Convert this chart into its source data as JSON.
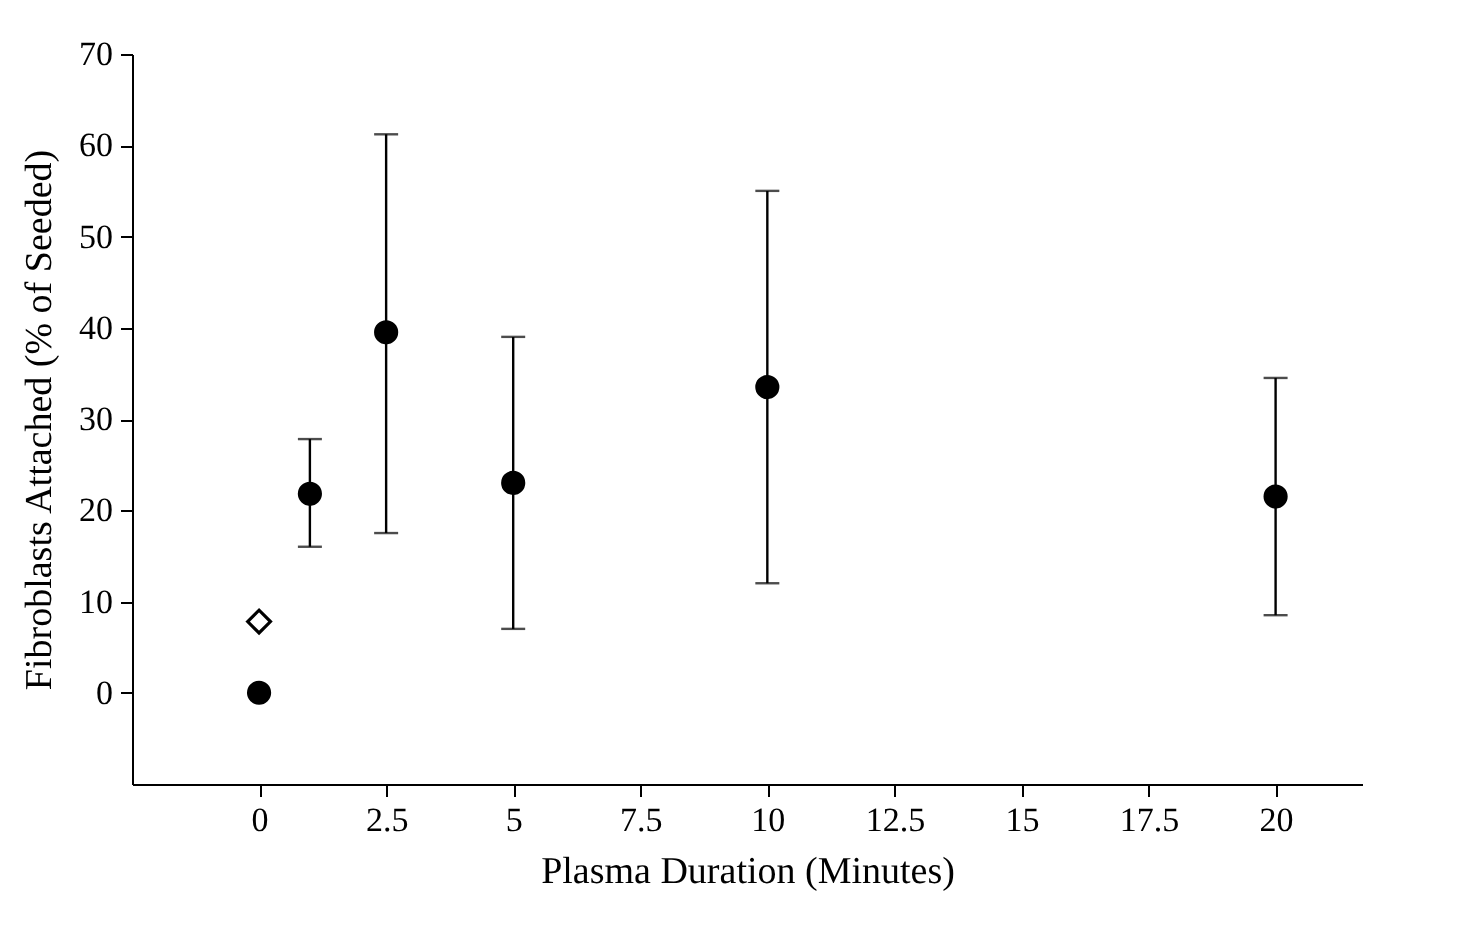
{
  "chart_data": {
    "type": "scatter",
    "xlabel": "Plasma Duration (Minutes)",
    "ylabel": "Fibroblasts Attached (% of Seeded)",
    "xlim": [
      -2.5,
      21.7
    ],
    "ylim": [
      -10,
      70
    ],
    "xticks": [
      0,
      2.5,
      5,
      7.5,
      10,
      12.5,
      15,
      17.5,
      20
    ],
    "yticks": [
      0,
      10,
      20,
      30,
      40,
      50,
      60,
      70
    ],
    "grid": false,
    "series": [
      {
        "color": "#000000",
        "marker": "circle",
        "x": [
          0,
          1,
          2.5,
          5,
          10,
          20
        ],
        "values": [
          0,
          21.8,
          39.5,
          23,
          33.5,
          21.5
        ],
        "errors": [
          null,
          [
            16,
            27.8
          ],
          [
            17.5,
            61.2
          ],
          [
            7,
            39
          ],
          [
            12,
            55
          ],
          [
            8.5,
            34.5
          ]
        ]
      },
      {
        "color": "#000000",
        "marker": "diamond",
        "x": [
          0
        ],
        "values": [
          7.8
        ]
      }
    ]
  }
}
